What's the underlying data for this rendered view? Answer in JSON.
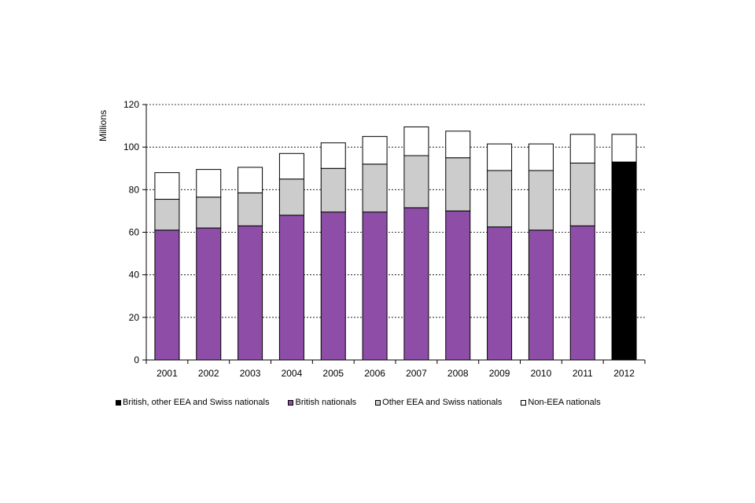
{
  "chart_data": {
    "type": "bar",
    "stacked": true,
    "title": "",
    "xlabel": "",
    "ylabel": "Millions",
    "ylim": [
      0,
      120
    ],
    "yticks": [
      0,
      20,
      40,
      60,
      80,
      100,
      120
    ],
    "grid": true,
    "categories": [
      "2001",
      "2002",
      "2003",
      "2004",
      "2005",
      "2006",
      "2007",
      "2008",
      "2009",
      "2010",
      "2011",
      "2012"
    ],
    "series": [
      {
        "name": "British, other EEA and Swiss nationals",
        "color": "#000000",
        "values": [
          0,
          0,
          0,
          0,
          0,
          0,
          0,
          0,
          0,
          0,
          0,
          93
        ]
      },
      {
        "name": "British nationals",
        "color": "#8e4ea8",
        "values": [
          61,
          62,
          63,
          68,
          69.5,
          69.5,
          71.5,
          70,
          62.5,
          61,
          63,
          0
        ]
      },
      {
        "name": "Other EEA and Swiss nationals",
        "color": "#cccccc",
        "values": [
          14.5,
          14.5,
          15.5,
          17,
          20.5,
          22.5,
          24.5,
          25,
          26.5,
          28,
          29.5,
          0
        ]
      },
      {
        "name": "Non-EEA nationals",
        "color": "#ffffff",
        "values": [
          12.5,
          13,
          12,
          12,
          12,
          13,
          13.5,
          12.5,
          12.5,
          12.5,
          13.5,
          13
        ]
      }
    ],
    "legend_position": "bottom"
  }
}
